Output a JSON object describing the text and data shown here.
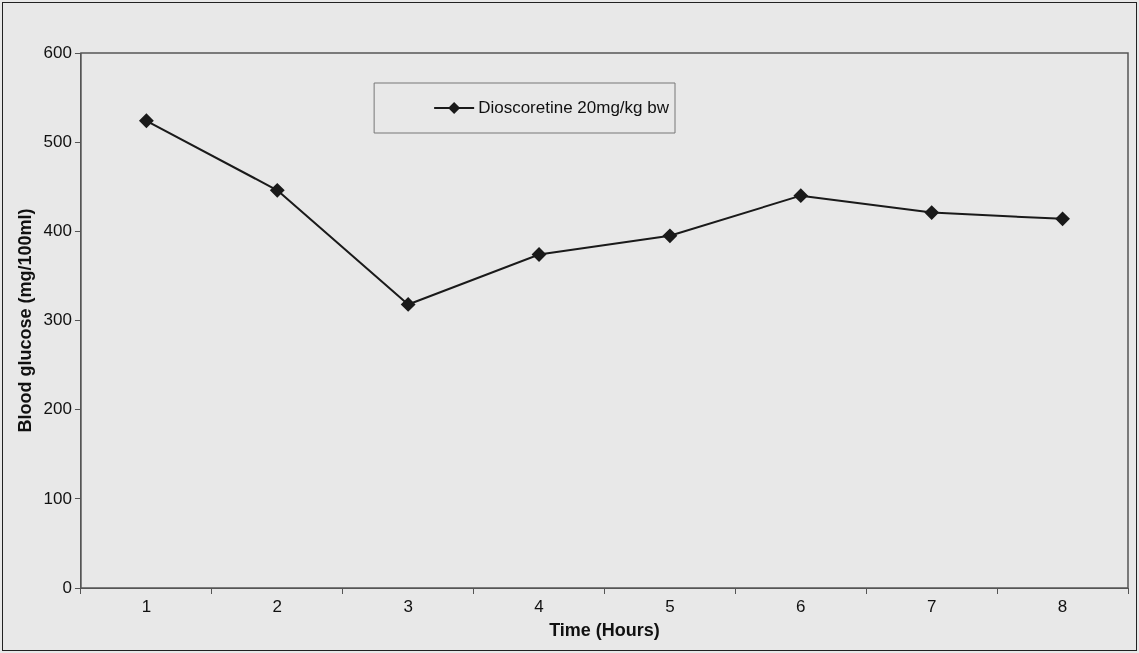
{
  "chart_data": {
    "type": "line",
    "xlabel": "Time (Hours)",
    "ylabel": "Blood glucose (mg/100ml)",
    "categories": [
      "1",
      "2",
      "3",
      "4",
      "5",
      "6",
      "7",
      "8"
    ],
    "series": [
      {
        "name": "Dioscoretine 20mg/kg bw",
        "color": "#1a1a1a",
        "values": [
          524,
          446,
          318,
          374,
          395,
          440,
          421,
          414
        ]
      }
    ],
    "ylim": [
      0,
      600
    ],
    "yticks": [
      0,
      100,
      200,
      300,
      400,
      500,
      600
    ],
    "grid": false,
    "legend": "top",
    "marker": "diamond",
    "line_style": "solid"
  }
}
